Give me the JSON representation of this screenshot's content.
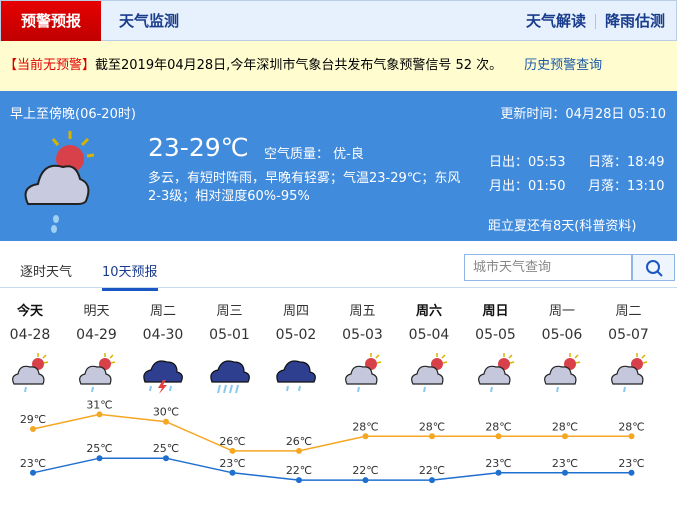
{
  "nav": {
    "active": "预警预报",
    "monitor": "天气监测",
    "interpret": "天气解读",
    "rain": "降雨估测"
  },
  "warning": {
    "status": "【当前无预警】",
    "text": "截至2019年04月28日,今年深圳市气象台共发布气象预警信号 52 次。",
    "history_link": "历史预警查询"
  },
  "now": {
    "period": "早上至傍晚(06-20时)",
    "updated": "更新时间：04月28日 05:10",
    "temp": "23-29℃",
    "aqi": "空气质量： 优-良",
    "desc1": "多云，有短时阵雨，早晚有轻雾；气温23-29℃；东风",
    "desc2": "2-3级；相对湿度60%-95%",
    "sunrise": "日出：05:53",
    "sunset": "日落：18:49",
    "moonrise": "月出：01:50",
    "moonset": "月落：13:10",
    "note": "距立夏还有8天(科普资料)",
    "icon": "cloudy-shower-icon"
  },
  "tabs": [
    {
      "label": "逐时天气"
    },
    {
      "label": "10天预报"
    }
  ],
  "search": {
    "placeholder": "城市天气查询"
  },
  "colors": {
    "high": "#f5a623",
    "low": "#1f6fcf"
  },
  "days": [
    {
      "week": "今天",
      "date": "04-28",
      "icon": "shower",
      "high": 29,
      "low": 23,
      "bold": true
    },
    {
      "week": "明天",
      "date": "04-29",
      "icon": "shower",
      "high": 31,
      "low": 25
    },
    {
      "week": "周二",
      "date": "04-30",
      "icon": "thunderstorm",
      "high": 30,
      "low": 25
    },
    {
      "week": "周三",
      "date": "05-01",
      "icon": "heavy-rain",
      "high": 26,
      "low": 23
    },
    {
      "week": "周四",
      "date": "05-02",
      "icon": "rain",
      "high": 26,
      "low": 22
    },
    {
      "week": "周五",
      "date": "05-03",
      "icon": "shower",
      "high": 28,
      "low": 22
    },
    {
      "week": "周六",
      "date": "05-04",
      "icon": "shower",
      "high": 28,
      "low": 22,
      "bold": true
    },
    {
      "week": "周日",
      "date": "05-05",
      "icon": "shower",
      "high": 28,
      "low": 23,
      "bold": true
    },
    {
      "week": "周一",
      "date": "05-06",
      "icon": "shower",
      "high": 28,
      "low": 23
    },
    {
      "week": "周二",
      "date": "05-07",
      "icon": "shower",
      "high": 28,
      "low": 23
    }
  ],
  "unit": "℃"
}
